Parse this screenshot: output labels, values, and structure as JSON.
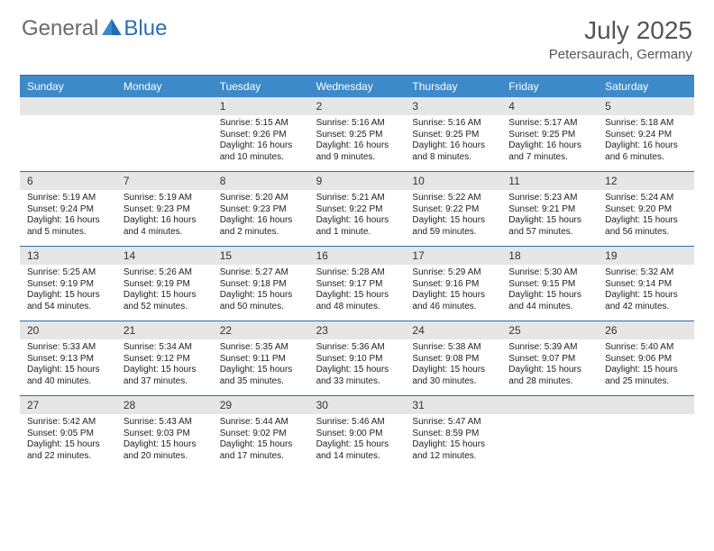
{
  "logo": {
    "part1": "General",
    "part2": "Blue"
  },
  "title": "July 2025",
  "location": "Petersaurach, Germany",
  "colors": {
    "header_bar": "#3d8ac9",
    "border": "#2a6fb5",
    "daynum_bg": "#e6e6e6",
    "text": "#222222",
    "title_text": "#555555"
  },
  "weekdays": [
    "Sunday",
    "Monday",
    "Tuesday",
    "Wednesday",
    "Thursday",
    "Friday",
    "Saturday"
  ],
  "weeks": [
    [
      {
        "n": "",
        "sr": "",
        "ss": "",
        "dl": ""
      },
      {
        "n": "",
        "sr": "",
        "ss": "",
        "dl": ""
      },
      {
        "n": "1",
        "sr": "Sunrise: 5:15 AM",
        "ss": "Sunset: 9:26 PM",
        "dl": "Daylight: 16 hours and 10 minutes."
      },
      {
        "n": "2",
        "sr": "Sunrise: 5:16 AM",
        "ss": "Sunset: 9:25 PM",
        "dl": "Daylight: 16 hours and 9 minutes."
      },
      {
        "n": "3",
        "sr": "Sunrise: 5:16 AM",
        "ss": "Sunset: 9:25 PM",
        "dl": "Daylight: 16 hours and 8 minutes."
      },
      {
        "n": "4",
        "sr": "Sunrise: 5:17 AM",
        "ss": "Sunset: 9:25 PM",
        "dl": "Daylight: 16 hours and 7 minutes."
      },
      {
        "n": "5",
        "sr": "Sunrise: 5:18 AM",
        "ss": "Sunset: 9:24 PM",
        "dl": "Daylight: 16 hours and 6 minutes."
      }
    ],
    [
      {
        "n": "6",
        "sr": "Sunrise: 5:19 AM",
        "ss": "Sunset: 9:24 PM",
        "dl": "Daylight: 16 hours and 5 minutes."
      },
      {
        "n": "7",
        "sr": "Sunrise: 5:19 AM",
        "ss": "Sunset: 9:23 PM",
        "dl": "Daylight: 16 hours and 4 minutes."
      },
      {
        "n": "8",
        "sr": "Sunrise: 5:20 AM",
        "ss": "Sunset: 9:23 PM",
        "dl": "Daylight: 16 hours and 2 minutes."
      },
      {
        "n": "9",
        "sr": "Sunrise: 5:21 AM",
        "ss": "Sunset: 9:22 PM",
        "dl": "Daylight: 16 hours and 1 minute."
      },
      {
        "n": "10",
        "sr": "Sunrise: 5:22 AM",
        "ss": "Sunset: 9:22 PM",
        "dl": "Daylight: 15 hours and 59 minutes."
      },
      {
        "n": "11",
        "sr": "Sunrise: 5:23 AM",
        "ss": "Sunset: 9:21 PM",
        "dl": "Daylight: 15 hours and 57 minutes."
      },
      {
        "n": "12",
        "sr": "Sunrise: 5:24 AM",
        "ss": "Sunset: 9:20 PM",
        "dl": "Daylight: 15 hours and 56 minutes."
      }
    ],
    [
      {
        "n": "13",
        "sr": "Sunrise: 5:25 AM",
        "ss": "Sunset: 9:19 PM",
        "dl": "Daylight: 15 hours and 54 minutes."
      },
      {
        "n": "14",
        "sr": "Sunrise: 5:26 AM",
        "ss": "Sunset: 9:19 PM",
        "dl": "Daylight: 15 hours and 52 minutes."
      },
      {
        "n": "15",
        "sr": "Sunrise: 5:27 AM",
        "ss": "Sunset: 9:18 PM",
        "dl": "Daylight: 15 hours and 50 minutes."
      },
      {
        "n": "16",
        "sr": "Sunrise: 5:28 AM",
        "ss": "Sunset: 9:17 PM",
        "dl": "Daylight: 15 hours and 48 minutes."
      },
      {
        "n": "17",
        "sr": "Sunrise: 5:29 AM",
        "ss": "Sunset: 9:16 PM",
        "dl": "Daylight: 15 hours and 46 minutes."
      },
      {
        "n": "18",
        "sr": "Sunrise: 5:30 AM",
        "ss": "Sunset: 9:15 PM",
        "dl": "Daylight: 15 hours and 44 minutes."
      },
      {
        "n": "19",
        "sr": "Sunrise: 5:32 AM",
        "ss": "Sunset: 9:14 PM",
        "dl": "Daylight: 15 hours and 42 minutes."
      }
    ],
    [
      {
        "n": "20",
        "sr": "Sunrise: 5:33 AM",
        "ss": "Sunset: 9:13 PM",
        "dl": "Daylight: 15 hours and 40 minutes."
      },
      {
        "n": "21",
        "sr": "Sunrise: 5:34 AM",
        "ss": "Sunset: 9:12 PM",
        "dl": "Daylight: 15 hours and 37 minutes."
      },
      {
        "n": "22",
        "sr": "Sunrise: 5:35 AM",
        "ss": "Sunset: 9:11 PM",
        "dl": "Daylight: 15 hours and 35 minutes."
      },
      {
        "n": "23",
        "sr": "Sunrise: 5:36 AM",
        "ss": "Sunset: 9:10 PM",
        "dl": "Daylight: 15 hours and 33 minutes."
      },
      {
        "n": "24",
        "sr": "Sunrise: 5:38 AM",
        "ss": "Sunset: 9:08 PM",
        "dl": "Daylight: 15 hours and 30 minutes."
      },
      {
        "n": "25",
        "sr": "Sunrise: 5:39 AM",
        "ss": "Sunset: 9:07 PM",
        "dl": "Daylight: 15 hours and 28 minutes."
      },
      {
        "n": "26",
        "sr": "Sunrise: 5:40 AM",
        "ss": "Sunset: 9:06 PM",
        "dl": "Daylight: 15 hours and 25 minutes."
      }
    ],
    [
      {
        "n": "27",
        "sr": "Sunrise: 5:42 AM",
        "ss": "Sunset: 9:05 PM",
        "dl": "Daylight: 15 hours and 22 minutes."
      },
      {
        "n": "28",
        "sr": "Sunrise: 5:43 AM",
        "ss": "Sunset: 9:03 PM",
        "dl": "Daylight: 15 hours and 20 minutes."
      },
      {
        "n": "29",
        "sr": "Sunrise: 5:44 AM",
        "ss": "Sunset: 9:02 PM",
        "dl": "Daylight: 15 hours and 17 minutes."
      },
      {
        "n": "30",
        "sr": "Sunrise: 5:46 AM",
        "ss": "Sunset: 9:00 PM",
        "dl": "Daylight: 15 hours and 14 minutes."
      },
      {
        "n": "31",
        "sr": "Sunrise: 5:47 AM",
        "ss": "Sunset: 8:59 PM",
        "dl": "Daylight: 15 hours and 12 minutes."
      },
      {
        "n": "",
        "sr": "",
        "ss": "",
        "dl": ""
      },
      {
        "n": "",
        "sr": "",
        "ss": "",
        "dl": ""
      }
    ]
  ]
}
